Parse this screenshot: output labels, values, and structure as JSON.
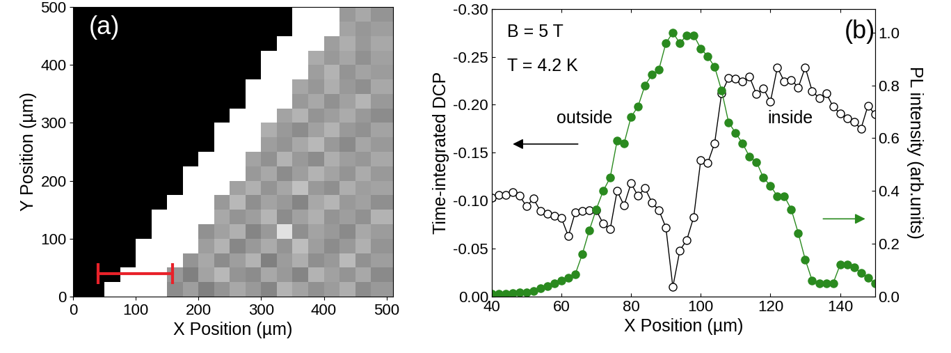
{
  "chart_data": [
    {
      "type": "heatmap",
      "annotations": [
        "(a)"
      ],
      "xlabel": "X Position (µm)",
      "ylabel": "Y Position (µm)",
      "xlim": [
        0,
        510
      ],
      "ylim": [
        0,
        500
      ],
      "xticks": [
        0,
        100,
        200,
        300,
        400,
        500
      ],
      "yticks": [
        0,
        100,
        200,
        300,
        400,
        500
      ],
      "x_edges": [
        0,
        25,
        50,
        75,
        100,
        125,
        150,
        175,
        200,
        225,
        250,
        275,
        300,
        325,
        350,
        375,
        400,
        425,
        450,
        475,
        510
      ],
      "y_edges": [
        0,
        25,
        50,
        75,
        100,
        125,
        150,
        175,
        200,
        225,
        250,
        275,
        300,
        325,
        350,
        375,
        400,
        425,
        450,
        475,
        500
      ],
      "value_range": [
        0,
        1
      ],
      "cells": [
        [
          0,
          0,
          1,
          1,
          1,
          1,
          0.55,
          0.62,
          0.5,
          0.58,
          0.66,
          0.6,
          0.52,
          0.7,
          0.64,
          0.57,
          0.61,
          0.68,
          0.55,
          0.6
        ],
        [
          0,
          0,
          0,
          1,
          1,
          1,
          0.6,
          0.5,
          0.64,
          0.72,
          0.58,
          0.55,
          0.66,
          0.6,
          0.52,
          0.7,
          0.63,
          0.58,
          0.66,
          0.54
        ],
        [
          0,
          0,
          0,
          0,
          1,
          1,
          1,
          0.58,
          0.66,
          0.55,
          0.62,
          0.7,
          0.5,
          0.61,
          0.68,
          0.56,
          0.6,
          0.73,
          0.57,
          0.62
        ],
        [
          0,
          0,
          0,
          0,
          1,
          1,
          1,
          1,
          0.62,
          0.7,
          0.53,
          0.6,
          0.67,
          0.58,
          0.74,
          0.62,
          0.55,
          0.6,
          0.69,
          0.58
        ],
        [
          0,
          0,
          0,
          0,
          0,
          1,
          1,
          1,
          0.57,
          0.63,
          0.69,
          0.52,
          0.6,
          0.88,
          0.56,
          0.64,
          0.6,
          0.54,
          0.66,
          0.61
        ],
        [
          0,
          0,
          0,
          0,
          0,
          1,
          1,
          1,
          1,
          0.66,
          0.58,
          0.62,
          0.71,
          0.55,
          0.63,
          0.69,
          0.58,
          0.62,
          0.57,
          0.7
        ],
        [
          0,
          0,
          0,
          0,
          0,
          0,
          1,
          1,
          1,
          0.6,
          0.72,
          0.56,
          0.64,
          0.6,
          0.52,
          0.66,
          0.71,
          0.6,
          0.63,
          0.56
        ],
        [
          0,
          0,
          0,
          0,
          0,
          0,
          0,
          1,
          1,
          1,
          0.63,
          0.69,
          0.58,
          0.65,
          0.75,
          0.6,
          0.56,
          0.68,
          0.62,
          0.64
        ],
        [
          0,
          0,
          0,
          0,
          0,
          0,
          0,
          1,
          1,
          1,
          1,
          0.6,
          0.66,
          0.55,
          0.62,
          0.7,
          0.64,
          0.58,
          0.67,
          0.6
        ],
        [
          0,
          0,
          0,
          0,
          0,
          0,
          0,
          0,
          1,
          1,
          1,
          0.64,
          0.57,
          0.7,
          0.6,
          0.55,
          0.68,
          0.62,
          0.59,
          0.66
        ],
        [
          0,
          0,
          0,
          0,
          0,
          0,
          0,
          0,
          0,
          1,
          1,
          1,
          0.62,
          0.58,
          0.66,
          0.72,
          0.6,
          0.54,
          0.65,
          0.6
        ],
        [
          0,
          0,
          0,
          0,
          0,
          0,
          0,
          0,
          0,
          1,
          1,
          1,
          0.68,
          0.6,
          0.55,
          0.63,
          0.7,
          0.6,
          0.57,
          0.64
        ],
        [
          0,
          0,
          0,
          0,
          0,
          0,
          0,
          0,
          0,
          0,
          1,
          1,
          1,
          0.64,
          0.7,
          0.58,
          0.62,
          0.67,
          0.6,
          0.55
        ],
        [
          0,
          0,
          0,
          0,
          0,
          0,
          0,
          0,
          0,
          0,
          0,
          1,
          1,
          1,
          0.6,
          0.66,
          0.57,
          0.63,
          0.71,
          0.6
        ],
        [
          0,
          0,
          0,
          0,
          0,
          0,
          0,
          0,
          0,
          0,
          0,
          1,
          1,
          1,
          0.65,
          0.59,
          0.68,
          0.6,
          0.56,
          0.66
        ],
        [
          0,
          0,
          0,
          0,
          0,
          0,
          0,
          0,
          0,
          0,
          0,
          0,
          1,
          1,
          1,
          0.62,
          0.7,
          0.58,
          0.64,
          0.61
        ],
        [
          0,
          0,
          0,
          0,
          0,
          0,
          0,
          0,
          0,
          0,
          0,
          0,
          1,
          1,
          1,
          0.67,
          0.6,
          0.65,
          0.57,
          0.63
        ],
        [
          0,
          0,
          0,
          0,
          0,
          0,
          0,
          0,
          0,
          0,
          0,
          0,
          0,
          1,
          1,
          1,
          0.62,
          0.68,
          0.6,
          0.66
        ],
        [
          0,
          0,
          0,
          0,
          0,
          0,
          0,
          0,
          0,
          0,
          0,
          0,
          0,
          0,
          1,
          1,
          1,
          0.64,
          0.59,
          0.62
        ],
        [
          0,
          0,
          0,
          0,
          0,
          0,
          0,
          0,
          0,
          0,
          0,
          0,
          0,
          0,
          1,
          1,
          1,
          0.6,
          0.66,
          0.58
        ]
      ],
      "series": [
        {
          "type": "line",
          "x": [
            40,
            158
          ],
          "values": [
            40,
            40
          ],
          "color": "#e8222a",
          "marker": "vline"
        }
      ]
    },
    {
      "type": "line",
      "annotations": [
        "B = 5 T",
        "T = 4.2 K",
        "outside",
        "inside",
        "(b)"
      ],
      "xlabel": "X Position (µm)",
      "ylabel": "Time-integrated DCP",
      "y2label": "PL intensity (arb.units)",
      "xlim": [
        40,
        150
      ],
      "xticks": [
        40,
        60,
        80,
        100,
        120,
        140
      ],
      "ylim": [
        0,
        -0.3
      ],
      "yticks": [
        {
          "value": 0,
          "label": "0.00"
        },
        {
          "value": -0.05,
          "label": "-0.05"
        },
        {
          "value": -0.1,
          "label": "-0.10"
        },
        {
          "value": -0.15,
          "label": "-0.15"
        },
        {
          "value": -0.2,
          "label": "-0.20"
        },
        {
          "value": -0.25,
          "label": "-0.25"
        },
        {
          "value": -0.3,
          "label": "-0.30"
        }
      ],
      "y2lim": [
        0,
        1.09
      ],
      "y2ticks": [
        {
          "value": 0,
          "label": "0.0"
        },
        {
          "value": 0.2,
          "label": "0.2"
        },
        {
          "value": 0.4,
          "label": "0.4"
        },
        {
          "value": 0.6,
          "label": "0.6"
        },
        {
          "value": 0.8,
          "label": "0.8"
        },
        {
          "value": 1.0,
          "label": "1.0"
        }
      ],
      "x": [
        40,
        42,
        44,
        46,
        48,
        50,
        52,
        54,
        56,
        58,
        60,
        62,
        64,
        66,
        68,
        70,
        72,
        74,
        76,
        78,
        80,
        82,
        84,
        86,
        88,
        90,
        92,
        94,
        96,
        98,
        100,
        102,
        104,
        106,
        108,
        110,
        112,
        114,
        116,
        118,
        120,
        122,
        124,
        126,
        128,
        130,
        132,
        134,
        136,
        138,
        140,
        142,
        144,
        146,
        148,
        150
      ],
      "series": [
        {
          "axis": "y",
          "color": "#000000",
          "marker": "open_circle",
          "values": [
            -0.103,
            -0.106,
            -0.106,
            -0.109,
            -0.105,
            -0.094,
            -0.102,
            -0.089,
            -0.086,
            -0.084,
            -0.082,
            -0.063,
            -0.088,
            -0.089,
            -0.09,
            -0.09,
            -0.076,
            -0.07,
            -0.11,
            -0.095,
            -0.118,
            -0.105,
            -0.113,
            -0.098,
            -0.09,
            -0.072,
            -0.01,
            -0.048,
            -0.059,
            -0.083,
            -0.142,
            -0.139,
            -0.16,
            -0.212,
            -0.228,
            -0.227,
            -0.224,
            -0.229,
            -0.211,
            -0.217,
            -0.203,
            -0.239,
            -0.224,
            -0.226,
            -0.218,
            -0.239,
            -0.214,
            -0.207,
            -0.212,
            -0.198,
            -0.191,
            -0.186,
            -0.182,
            -0.175,
            -0.199,
            -0.19
          ]
        },
        {
          "axis": "y2",
          "color": "#2a8a1f",
          "marker": "circle",
          "values": [
            0.01,
            0.01,
            0.01,
            0.012,
            0.015,
            0.016,
            0.022,
            0.032,
            0.04,
            0.05,
            0.06,
            0.07,
            0.085,
            0.16,
            0.25,
            0.33,
            0.4,
            0.45,
            0.59,
            0.58,
            0.68,
            0.72,
            0.8,
            0.84,
            0.86,
            0.96,
            1.0,
            0.96,
            0.99,
            0.99,
            0.94,
            0.91,
            0.87,
            0.78,
            0.66,
            0.62,
            0.58,
            0.53,
            0.51,
            0.45,
            0.42,
            0.38,
            0.38,
            0.33,
            0.24,
            0.14,
            0.06,
            0.05,
            0.05,
            0.05,
            0.12,
            0.12,
            0.11,
            0.09,
            0.07,
            0.05
          ]
        }
      ]
    }
  ]
}
